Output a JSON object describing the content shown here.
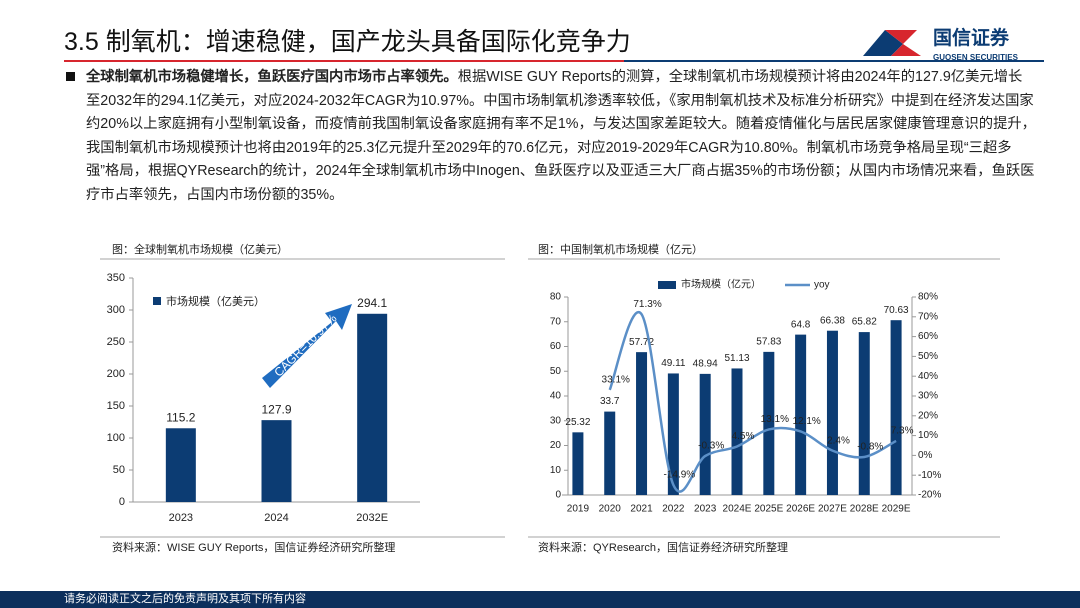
{
  "header": {
    "title": "3.5 制氧机：增速稳健，国产龙头具备国际化竞争力",
    "logo_cn": "国信证券",
    "logo_en": "GUOSEN SECURITIES"
  },
  "body": {
    "lead": "全球制氧机市场稳健增长，鱼跃医疗国内市场市占率领先。",
    "text": "根据WISE GUY Reports的测算，全球制氧机市场规模预计将由2024年的127.9亿美元增长至2032年的294.1亿美元，对应2024-2032年CAGR为10.97%。中国市场制氧机渗透率较低，《家用制氧机技术及标准分析研究》中提到在经济发达国家约20%以上家庭拥有小型制氧设备，而疫情前我国制氧设备家庭拥有率不足1%，与发达国家差距较大。随着疫情催化与居民居家健康管理意识的提升，我国制氧机市场规模预计也将由2019年的25.3亿元提升至2029年的70.6亿元，对应2019-2029年CAGR为10.80%。制氧机市场竞争格局呈现“三超多强”格局，根据QYResearch的统计，2024年全球制氧机市场中Inogen、鱼跃医疗以及亚适三大厂商占据35%的市场份额；从国内市场情况来看，鱼跃医疗市占率领先，占国内市场份额的35%。"
  },
  "chart_data": [
    {
      "type": "bar",
      "caption": "图：全球制氧机市场规模（亿美元）",
      "source": "资料来源：WISE GUY Reports，国信证券经济研究所整理",
      "categories": [
        "2023",
        "2024",
        "2032E"
      ],
      "series": [
        {
          "name": "市场规模（亿美元）",
          "color": "#0c3c73",
          "values": [
            115.2,
            127.9,
            294.1
          ]
        }
      ],
      "ylim": [
        0,
        350
      ],
      "yticks": [
        0,
        50,
        100,
        150,
        200,
        250,
        300,
        350
      ],
      "annotation": "CAGR=10.97%"
    },
    {
      "type": "combo",
      "caption": "图：中国制氧机市场规模（亿元）",
      "source": "资料来源：QYResearch，国信证券经济研究所整理",
      "categories": [
        "2019",
        "2020",
        "2021",
        "2022",
        "2023",
        "2024E",
        "2025E",
        "2026E",
        "2027E",
        "2028E",
        "2029E"
      ],
      "series": [
        {
          "name": "市场规模（亿元）",
          "color": "#0c3c73",
          "values": [
            25.32,
            33.7,
            57.72,
            49.11,
            48.94,
            51.13,
            57.83,
            64.8,
            66.38,
            65.82,
            70.63
          ]
        },
        {
          "name": "yoy",
          "color": "#5b8fc7",
          "axis": "y2",
          "values": [
            null,
            33.1,
            71.3,
            -14.9,
            -0.3,
            4.5,
            13.1,
            12.1,
            2.4,
            -0.8,
            7.3
          ],
          "value_labels": [
            null,
            "33.1%",
            "71.3%",
            "-14.9%",
            "-0.3%",
            "4.5%",
            "13.1%",
            "12.1%",
            "2.4%",
            "-0.8%",
            "7.3%"
          ]
        }
      ],
      "ylim": [
        0,
        80
      ],
      "yticks": [
        0,
        10,
        20,
        30,
        40,
        50,
        60,
        70,
        80
      ],
      "y2lim": [
        -20,
        80
      ],
      "y2ticks": [
        {
          "value": -20,
          "label": "-20%"
        },
        {
          "value": -10,
          "label": "-10%"
        },
        {
          "value": 0,
          "label": "0%"
        },
        {
          "value": 10,
          "label": "10%"
        },
        {
          "value": 20,
          "label": "20%"
        },
        {
          "value": 30,
          "label": "30%"
        },
        {
          "value": 40,
          "label": "40%"
        },
        {
          "value": 50,
          "label": "50%"
        },
        {
          "value": 60,
          "label": "60%"
        },
        {
          "value": 70,
          "label": "70%"
        },
        {
          "value": 80,
          "label": "80%"
        }
      ]
    }
  ],
  "footer": {
    "text": "请务必阅读正文之后的免责声明及其项下所有内容"
  }
}
